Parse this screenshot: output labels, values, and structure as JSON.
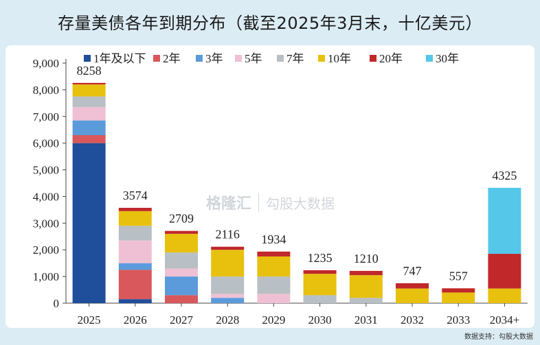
{
  "title": "存量美债各年到期分布（截至2025年3月末，十亿美元）",
  "watermark": {
    "logo_a": "格隆汇",
    "logo_b": "勾股大数据"
  },
  "source": "数据支持：勾股大数据",
  "chart_data": {
    "type": "bar",
    "stacked": true,
    "title": "存量美债各年到期分布（截至2025年3月末，十亿美元）",
    "ylim": [
      0,
      9000
    ],
    "yticks": [
      "0",
      "1,000",
      "2,000",
      "3,000",
      "4,000",
      "5,000",
      "6,000",
      "7,000",
      "8,000",
      "9,000"
    ],
    "grid": false,
    "legend_position": "top",
    "categories": [
      "2025",
      "2026",
      "2027",
      "2028",
      "2029",
      "2030",
      "2031",
      "2032",
      "2033",
      "2034+"
    ],
    "totals": [
      8258,
      3574,
      2709,
      2116,
      1934,
      1235,
      1210,
      747,
      557,
      4325
    ],
    "series": [
      {
        "name": "1年及以下",
        "color": "#1f4e9a",
        "values": [
          6000,
          150,
          0,
          0,
          0,
          0,
          0,
          0,
          0,
          0
        ]
      },
      {
        "name": "2年",
        "color": "#d9585b",
        "values": [
          300,
          1100,
          300,
          0,
          0,
          0,
          0,
          0,
          0,
          0
        ]
      },
      {
        "name": "3年",
        "color": "#5b9bdc",
        "values": [
          550,
          250,
          700,
          200,
          0,
          0,
          0,
          0,
          0,
          0
        ]
      },
      {
        "name": "5年",
        "color": "#efc0d3",
        "values": [
          500,
          850,
          300,
          150,
          350,
          0,
          0,
          0,
          0,
          0
        ]
      },
      {
        "name": "7年",
        "color": "#b8bfc5",
        "values": [
          400,
          550,
          600,
          650,
          650,
          300,
          200,
          0,
          0,
          0
        ]
      },
      {
        "name": "10年",
        "color": "#e8c10f",
        "values": [
          450,
          550,
          700,
          1000,
          750,
          800,
          850,
          550,
          400,
          550
        ]
      },
      {
        "name": "20年",
        "color": "#c0282a",
        "values": [
          58,
          124,
          109,
          116,
          184,
          135,
          160,
          197,
          157,
          1300
        ]
      },
      {
        "name": "30年",
        "color": "#55c7e8",
        "values": [
          0,
          0,
          0,
          0,
          0,
          0,
          0,
          0,
          0,
          2475
        ]
      }
    ]
  }
}
